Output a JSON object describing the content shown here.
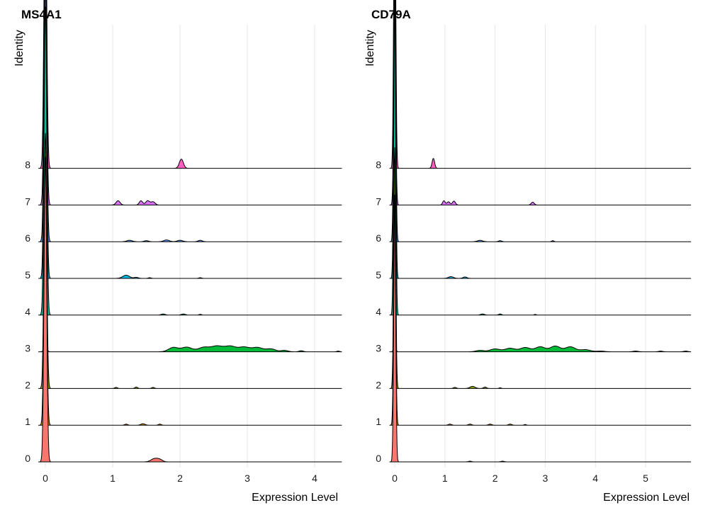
{
  "chart_data": [
    {
      "type": "ridgeline",
      "title": "MS4A1",
      "xlabel": "Expression Level",
      "ylabel": "Identity",
      "xlim": [
        -0.1,
        4.4
      ],
      "xticks": [
        0,
        1,
        2,
        3,
        4
      ],
      "categories": [
        "0",
        "1",
        "2",
        "3",
        "4",
        "5",
        "6",
        "7",
        "8"
      ],
      "colors": [
        "#F8766D",
        "#D39200",
        "#93AA00",
        "#00BA38",
        "#00C19F",
        "#00B9E3",
        "#619CFF",
        "#DB72FB",
        "#FF61C3"
      ],
      "series": [
        {
          "name": "0",
          "zero_peak": 8.6,
          "bumps": [
            [
              1.62,
              0.09,
              0.05
            ],
            [
              1.7,
              0.06,
              0.04
            ]
          ]
        },
        {
          "name": "1",
          "zero_peak": 6.8,
          "bumps": [
            [
              1.2,
              0.03,
              0.02
            ],
            [
              1.45,
              0.04,
              0.03
            ],
            [
              1.7,
              0.03,
              0.02
            ]
          ]
        },
        {
          "name": "2",
          "zero_peak": 7.2,
          "bumps": [
            [
              1.05,
              0.03,
              0.02
            ],
            [
              1.35,
              0.04,
              0.02
            ],
            [
              1.6,
              0.03,
              0.02
            ]
          ]
        },
        {
          "name": "3",
          "zero_peak": 0.2,
          "bumps": [
            [
              1.9,
              0.12,
              0.07
            ],
            [
              2.1,
              0.13,
              0.08
            ],
            [
              2.35,
              0.12,
              0.08
            ],
            [
              2.55,
              0.16,
              0.09
            ],
            [
              2.75,
              0.15,
              0.08
            ],
            [
              2.95,
              0.13,
              0.08
            ],
            [
              3.15,
              0.12,
              0.08
            ],
            [
              3.35,
              0.08,
              0.07
            ],
            [
              3.55,
              0.04,
              0.05
            ],
            [
              3.8,
              0.03,
              0.03
            ],
            [
              4.35,
              0.02,
              0.02
            ]
          ]
        },
        {
          "name": "4",
          "zero_peak": 8.7,
          "bumps": [
            [
              1.75,
              0.03,
              0.03
            ],
            [
              2.05,
              0.03,
              0.03
            ],
            [
              2.3,
              0.02,
              0.02
            ]
          ]
        },
        {
          "name": "5",
          "zero_peak": 7.6,
          "bumps": [
            [
              1.2,
              0.09,
              0.05
            ],
            [
              1.35,
              0.03,
              0.03
            ],
            [
              1.55,
              0.02,
              0.02
            ],
            [
              2.3,
              0.02,
              0.02
            ]
          ]
        },
        {
          "name": "6",
          "zero_peak": 7.3,
          "bumps": [
            [
              1.25,
              0.04,
              0.04
            ],
            [
              1.5,
              0.03,
              0.03
            ],
            [
              1.8,
              0.05,
              0.04
            ],
            [
              2.0,
              0.04,
              0.04
            ],
            [
              2.3,
              0.04,
              0.03
            ]
          ]
        },
        {
          "name": "7",
          "zero_peak": 6.8,
          "bumps": [
            [
              1.08,
              0.12,
              0.03
            ],
            [
              1.42,
              0.12,
              0.025
            ],
            [
              1.52,
              0.12,
              0.03
            ],
            [
              1.6,
              0.09,
              0.03
            ]
          ]
        },
        {
          "name": "8",
          "zero_peak": 8.2,
          "bumps": [
            [
              2.02,
              0.26,
              0.03
            ]
          ]
        }
      ]
    },
    {
      "type": "ridgeline",
      "title": "CD79A",
      "xlabel": "Expression Level",
      "ylabel": "Identity",
      "xlim": [
        -0.1,
        5.9
      ],
      "xticks": [
        0,
        1,
        2,
        3,
        4,
        5
      ],
      "categories": [
        "0",
        "1",
        "2",
        "3",
        "4",
        "5",
        "6",
        "7",
        "8"
      ],
      "colors": [
        "#F8766D",
        "#D39200",
        "#93AA00",
        "#00BA38",
        "#00C19F",
        "#00B9E3",
        "#619CFF",
        "#DB72FB",
        "#FF61C3"
      ],
      "series": [
        {
          "name": "0",
          "zero_peak": 7.2,
          "bumps": [
            [
              1.5,
              0.02,
              0.03
            ],
            [
              2.15,
              0.02,
              0.03
            ]
          ]
        },
        {
          "name": "1",
          "zero_peak": 6.5,
          "bumps": [
            [
              1.1,
              0.03,
              0.03
            ],
            [
              1.5,
              0.03,
              0.03
            ],
            [
              1.9,
              0.03,
              0.03
            ],
            [
              2.3,
              0.03,
              0.03
            ],
            [
              2.6,
              0.02,
              0.02
            ]
          ]
        },
        {
          "name": "2",
          "zero_peak": 6.8,
          "bumps": [
            [
              1.2,
              0.03,
              0.03
            ],
            [
              1.55,
              0.06,
              0.05
            ],
            [
              1.8,
              0.04,
              0.03
            ],
            [
              2.1,
              0.02,
              0.02
            ]
          ]
        },
        {
          "name": "3",
          "zero_peak": 0.2,
          "bumps": [
            [
              1.7,
              0.04,
              0.08
            ],
            [
              2.0,
              0.08,
              0.1
            ],
            [
              2.3,
              0.1,
              0.1
            ],
            [
              2.6,
              0.12,
              0.1
            ],
            [
              2.9,
              0.14,
              0.1
            ],
            [
              3.2,
              0.16,
              0.1
            ],
            [
              3.5,
              0.14,
              0.1
            ],
            [
              3.8,
              0.06,
              0.1
            ],
            [
              4.1,
              0.02,
              0.08
            ],
            [
              4.8,
              0.02,
              0.05
            ],
            [
              5.3,
              0.02,
              0.04
            ],
            [
              5.8,
              0.02,
              0.04
            ]
          ]
        },
        {
          "name": "4",
          "zero_peak": 8.7,
          "bumps": [
            [
              1.75,
              0.03,
              0.04
            ],
            [
              2.1,
              0.03,
              0.03
            ],
            [
              2.8,
              0.02,
              0.02
            ]
          ]
        },
        {
          "name": "5",
          "zero_peak": 8.0,
          "bumps": [
            [
              1.12,
              0.05,
              0.05
            ],
            [
              1.4,
              0.04,
              0.04
            ]
          ]
        },
        {
          "name": "6",
          "zero_peak": 8.0,
          "bumps": [
            [
              1.7,
              0.04,
              0.05
            ],
            [
              2.1,
              0.03,
              0.03
            ],
            [
              3.15,
              0.03,
              0.02
            ]
          ]
        },
        {
          "name": "7",
          "zero_peak": 5.5,
          "bumps": [
            [
              0.98,
              0.12,
              0.025
            ],
            [
              1.07,
              0.09,
              0.03
            ],
            [
              1.18,
              0.11,
              0.03
            ],
            [
              2.75,
              0.08,
              0.03
            ]
          ]
        },
        {
          "name": "8",
          "zero_peak": 8.6,
          "bumps": [
            [
              0.77,
              0.28,
              0.025
            ]
          ]
        }
      ]
    }
  ]
}
